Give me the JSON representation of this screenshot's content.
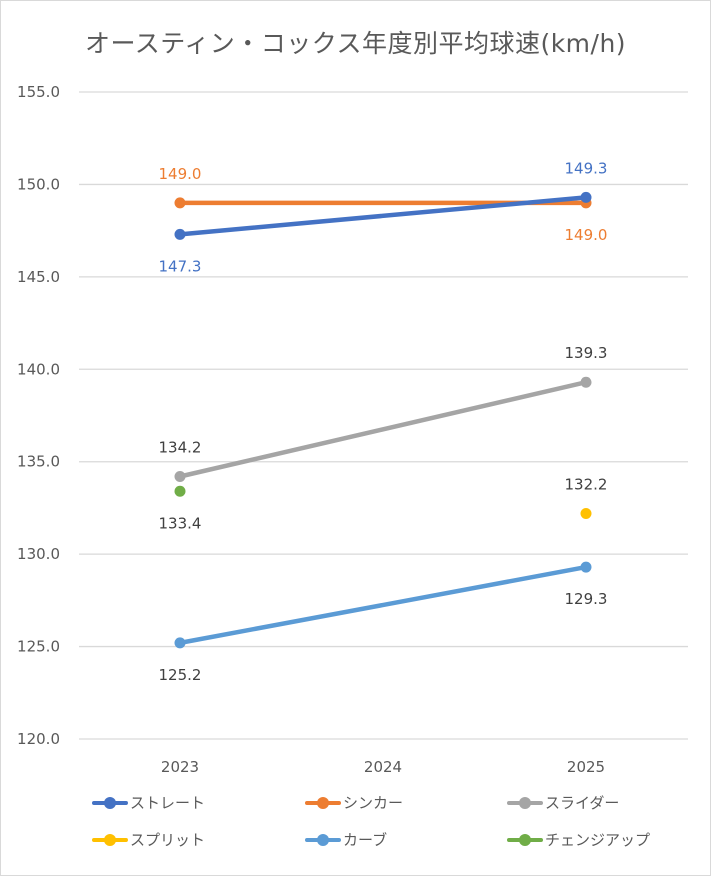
{
  "chart_data": {
    "type": "line",
    "title": "オースティン・コックス年度別平均球速(km/h)",
    "xlabel": "",
    "ylabel": "",
    "categories": [
      "2023",
      "2024",
      "2025"
    ],
    "ylim": [
      120.0,
      155.0
    ],
    "yticks": [
      "120.0",
      "125.0",
      "130.0",
      "135.0",
      "140.0",
      "145.0",
      "150.0",
      "155.0"
    ],
    "ytick_values": [
      120,
      125,
      130,
      135,
      140,
      145,
      150,
      155
    ],
    "grid": true,
    "legend_position": "bottom",
    "series": [
      {
        "name": "ストレート",
        "color": "#4472c4",
        "values": [
          147.3,
          null,
          149.3
        ],
        "labels": [
          "147.3",
          null,
          "149.3"
        ],
        "label_pos": [
          "below",
          null,
          "above"
        ],
        "label_color": "#4472c4"
      },
      {
        "name": "シンカー",
        "color": "#ed7d31",
        "values": [
          149.0,
          null,
          149.0
        ],
        "labels": [
          "149.0",
          null,
          "149.0"
        ],
        "label_pos": [
          "above",
          null,
          "below"
        ],
        "label_color": "#ed7d31"
      },
      {
        "name": "スライダー",
        "color": "#a5a5a5",
        "values": [
          134.2,
          null,
          139.3
        ],
        "labels": [
          "134.2",
          null,
          "139.3"
        ],
        "label_pos": [
          "above",
          null,
          "above"
        ],
        "label_color": "#404040"
      },
      {
        "name": "スプリット",
        "color": "#ffc000",
        "values": [
          null,
          null,
          132.2
        ],
        "labels": [
          null,
          null,
          "132.2"
        ],
        "label_pos": [
          null,
          null,
          "above"
        ],
        "label_color": "#404040"
      },
      {
        "name": "カーブ",
        "color": "#5b9bd5",
        "values": [
          125.2,
          null,
          129.3
        ],
        "labels": [
          "125.2",
          null,
          "129.3"
        ],
        "label_pos": [
          "below",
          null,
          "below"
        ],
        "label_color": "#404040"
      },
      {
        "name": "チェンジアップ",
        "color": "#70ad47",
        "values": [
          133.4,
          null,
          null
        ],
        "labels": [
          "133.4",
          null,
          null
        ],
        "label_pos": [
          "below",
          null,
          null
        ],
        "label_color": "#404040"
      }
    ]
  }
}
